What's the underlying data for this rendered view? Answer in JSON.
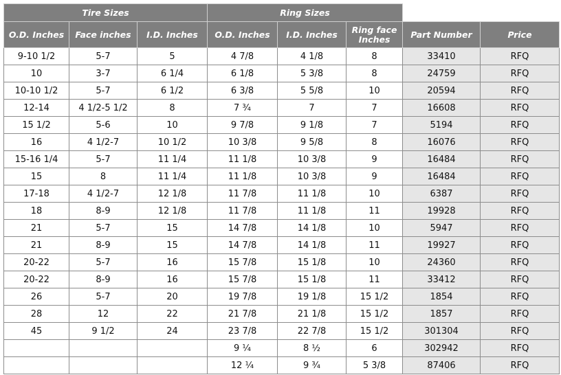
{
  "table": {
    "groups": [
      "Tire Sizes",
      "Ring Sizes"
    ],
    "columns": [
      "O.D.  Inches",
      "Face inches",
      "I.D. Inches",
      "O.D. Inches",
      "I.D. Inches",
      "Ring face Inches",
      "Part Number",
      "Price"
    ],
    "rows": [
      [
        "9-10 1/2",
        "5-7",
        "5",
        "4 7/8",
        "4 1/8",
        "8",
        "33410",
        "RFQ"
      ],
      [
        "10",
        "3-7",
        "6 1/4",
        "6 1/8",
        "5 3/8",
        "8",
        "24759",
        "RFQ"
      ],
      [
        "10-10 1/2",
        "5-7",
        "6 1/2",
        "6 3/8",
        "5 5/8",
        "10",
        "20594",
        "RFQ"
      ],
      [
        "12-14",
        "4 1/2-5 1/2",
        "8",
        "7 ¾",
        "7",
        "7",
        "16608",
        "RFQ"
      ],
      [
        "15 1/2",
        "5-6",
        "10",
        "9 7/8",
        "9 1/8",
        "7",
        "5194",
        "RFQ"
      ],
      [
        "16",
        "4 1/2-7",
        "10 1/2",
        "10 3/8",
        "9 5/8",
        "8",
        "16076",
        "RFQ"
      ],
      [
        "15-16 1/4",
        "5-7",
        "11 1/4",
        "11 1/8",
        "10 3/8",
        "9",
        "16484",
        "RFQ"
      ],
      [
        "15",
        "8",
        "11 1/4",
        "11 1/8",
        "10 3/8",
        "9",
        "16484",
        "RFQ"
      ],
      [
        "17-18",
        "4 1/2-7",
        "12 1/8",
        "11 7/8",
        "11 1/8",
        "10",
        "6387",
        "RFQ"
      ],
      [
        "18",
        "8-9",
        "12 1/8",
        "11 7/8",
        "11 1/8",
        "11",
        "19928",
        "RFQ"
      ],
      [
        "21",
        "5-7",
        "15",
        "14 7/8",
        "14 1/8",
        "10",
        "5947",
        "RFQ"
      ],
      [
        "21",
        "8-9",
        "15",
        "14 7/8",
        "14 1/8",
        "11",
        "19927",
        "RFQ"
      ],
      [
        "20-22",
        "5-7",
        "16",
        "15 7/8",
        "15 1/8",
        "10",
        "24360",
        "RFQ"
      ],
      [
        "20-22",
        "8-9",
        "16",
        "15 7/8",
        "15 1/8",
        "11",
        "33412",
        "RFQ"
      ],
      [
        "26",
        "5-7",
        "20",
        "19 7/8",
        "19 1/8",
        "15 1/2",
        "1854",
        "RFQ"
      ],
      [
        "28",
        "12",
        "22",
        "21 7/8",
        "21 1/8",
        "15 1/2",
        "1857",
        "RFQ"
      ],
      [
        "45",
        "9 1/2",
        "24",
        "23 7/8",
        "22 7/8",
        "15 1/2",
        "301304",
        "RFQ"
      ],
      [
        null,
        null,
        null,
        "9 ¼",
        "8 ½",
        "6",
        "302942",
        "RFQ"
      ],
      [
        null,
        null,
        null,
        "12 ¼",
        "9 ¾",
        "5 3/8",
        "87406",
        "RFQ"
      ]
    ]
  }
}
